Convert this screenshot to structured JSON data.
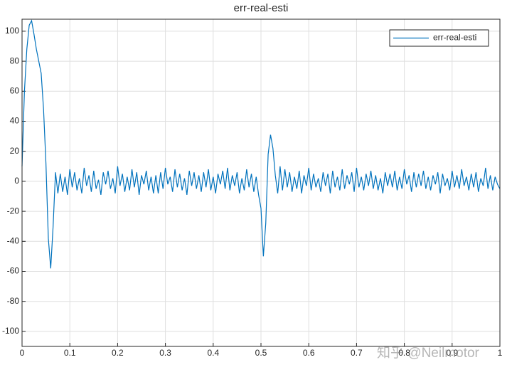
{
  "chart_data": {
    "type": "line",
    "title": "err-real-esti",
    "x": [
      0,
      0.005,
      0.01,
      0.015,
      0.02,
      0.025,
      0.03,
      0.035,
      0.04,
      0.045,
      0.05,
      0.055,
      0.06,
      0.065,
      0.07,
      0.075,
      0.08,
      0.085,
      0.09,
      0.095,
      0.1,
      0.105,
      0.11,
      0.115,
      0.12,
      0.125,
      0.13,
      0.135,
      0.14,
      0.145,
      0.15,
      0.155,
      0.16,
      0.165,
      0.17,
      0.175,
      0.18,
      0.185,
      0.19,
      0.195,
      0.2,
      0.205,
      0.21,
      0.215,
      0.22,
      0.225,
      0.23,
      0.235,
      0.24,
      0.245,
      0.25,
      0.255,
      0.26,
      0.265,
      0.27,
      0.275,
      0.28,
      0.285,
      0.29,
      0.295,
      0.3,
      0.305,
      0.31,
      0.315,
      0.32,
      0.325,
      0.33,
      0.335,
      0.34,
      0.345,
      0.35,
      0.355,
      0.36,
      0.365,
      0.37,
      0.375,
      0.38,
      0.385,
      0.39,
      0.395,
      0.4,
      0.405,
      0.41,
      0.415,
      0.42,
      0.425,
      0.43,
      0.435,
      0.44,
      0.445,
      0.45,
      0.455,
      0.46,
      0.465,
      0.47,
      0.475,
      0.48,
      0.485,
      0.49,
      0.495,
      0.5,
      0.505,
      0.51,
      0.515,
      0.52,
      0.525,
      0.53,
      0.535,
      0.54,
      0.545,
      0.55,
      0.555,
      0.56,
      0.565,
      0.57,
      0.575,
      0.58,
      0.585,
      0.59,
      0.595,
      0.6,
      0.605,
      0.61,
      0.615,
      0.62,
      0.625,
      0.63,
      0.635,
      0.64,
      0.645,
      0.65,
      0.655,
      0.66,
      0.665,
      0.67,
      0.675,
      0.68,
      0.685,
      0.69,
      0.695,
      0.7,
      0.705,
      0.71,
      0.715,
      0.72,
      0.725,
      0.73,
      0.735,
      0.74,
      0.745,
      0.75,
      0.755,
      0.76,
      0.765,
      0.77,
      0.775,
      0.78,
      0.785,
      0.79,
      0.795,
      0.8,
      0.805,
      0.81,
      0.815,
      0.82,
      0.825,
      0.83,
      0.835,
      0.84,
      0.845,
      0.85,
      0.855,
      0.86,
      0.865,
      0.87,
      0.875,
      0.88,
      0.885,
      0.89,
      0.895,
      0.9,
      0.905,
      0.91,
      0.915,
      0.92,
      0.925,
      0.93,
      0.935,
      0.94,
      0.945,
      0.95,
      0.955,
      0.96,
      0.965,
      0.97,
      0.975,
      0.98,
      0.985,
      0.99,
      0.995,
      1
    ],
    "series": [
      {
        "name": "err-real-esti",
        "color": "#0072bd",
        "values": [
          10,
          60,
          88,
          104,
          107,
          98,
          88,
          80,
          72,
          48,
          12,
          -38,
          -58,
          -30,
          6,
          -8,
          5,
          -7,
          3,
          -9,
          8,
          -4,
          6,
          -6,
          2,
          -8,
          9,
          -3,
          4,
          -7,
          7,
          -5,
          1,
          -9,
          6,
          -2,
          7,
          -5,
          2,
          -8,
          10,
          -3,
          5,
          -7,
          3,
          -6,
          8,
          -4,
          6,
          -9,
          4,
          -2,
          7,
          -6,
          3,
          -8,
          4,
          -8,
          6,
          -5,
          9,
          -2,
          3,
          -7,
          8,
          -4,
          5,
          -6,
          2,
          -9,
          7,
          -3,
          6,
          -5,
          4,
          -7,
          6,
          -4,
          8,
          -6,
          3,
          -8,
          5,
          -2,
          7,
          -5,
          9,
          -6,
          4,
          -3,
          6,
          -8,
          2,
          -6,
          8,
          -4,
          5,
          -7,
          3,
          -9,
          -18,
          -50,
          -28,
          18,
          31,
          22,
          4,
          -8,
          10,
          -6,
          8,
          -4,
          6,
          -7,
          3,
          -5,
          7,
          -8,
          4,
          -3,
          9,
          -6,
          5,
          -4,
          2,
          -7,
          6,
          -3,
          5,
          -8,
          7,
          -4,
          3,
          -6,
          8,
          -5,
          4,
          -2,
          6,
          -7,
          9,
          -4,
          3,
          -6,
          5,
          -3,
          7,
          -5,
          4,
          -6,
          2,
          -8,
          6,
          -3,
          5,
          -4,
          7,
          -6,
          3,
          -5,
          8,
          -2,
          4,
          -7,
          6,
          -4,
          5,
          -3,
          7,
          -5,
          3,
          -6,
          4,
          -2,
          6,
          -8,
          5,
          -3,
          2,
          -6,
          7,
          -4,
          4,
          -5,
          8,
          -3,
          3,
          -6,
          5,
          -4,
          6,
          -7,
          2,
          -3,
          9,
          -5,
          4,
          -6,
          3,
          -2,
          -5
        ]
      }
    ],
    "xlim": [
      0,
      1
    ],
    "xticks": [
      0,
      0.1,
      0.2,
      0.3,
      0.4,
      0.5,
      0.6,
      0.7,
      0.8,
      0.9,
      1
    ],
    "ylim": [
      -110,
      108
    ],
    "yticks": [
      -100,
      -80,
      -60,
      -40,
      -20,
      0,
      20,
      40,
      60,
      80,
      100
    ],
    "grid": true,
    "legend": "upper right",
    "watermark": "知乎 @Neilmotor"
  }
}
